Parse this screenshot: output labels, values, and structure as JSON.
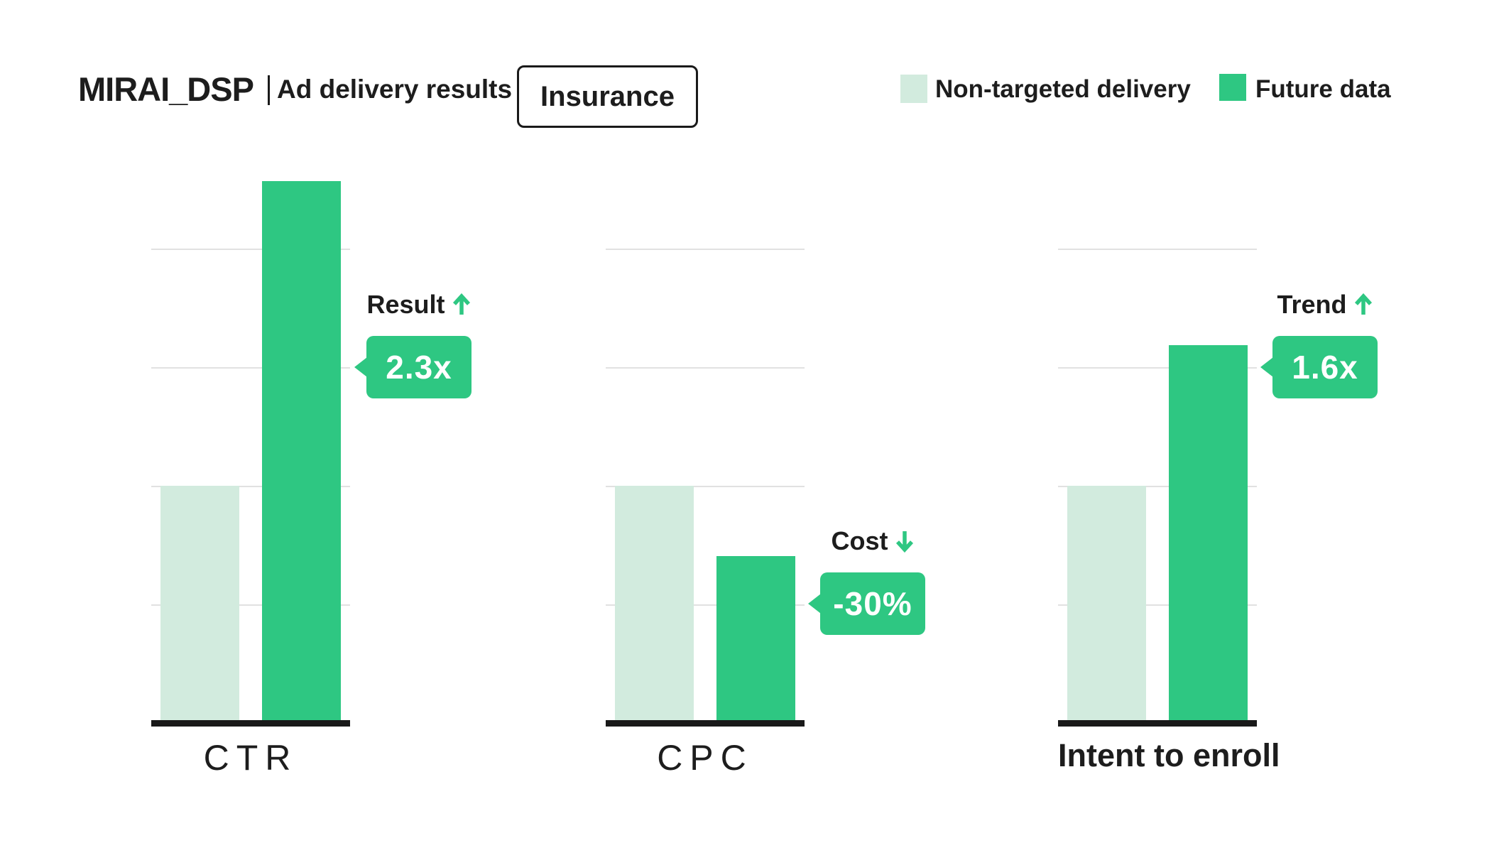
{
  "header": {
    "brand": "MIRAI_DSP",
    "subtitle": "Ad delivery results",
    "category_chip": "Insurance"
  },
  "legend": {
    "items": [
      {
        "label": "Non-targeted delivery",
        "color": "#d2ebde"
      },
      {
        "label": "Future data",
        "color": "#2ec782"
      }
    ]
  },
  "colors": {
    "accent_green": "#2ec782",
    "light_green": "#d2ebde",
    "text": "#1d1d1d",
    "gridline": "#e1e1e1",
    "axis_baseline": "#191919"
  },
  "charts": [
    {
      "label": "CTR",
      "callout": {
        "title": "Result",
        "direction": "up",
        "value": "2.3x"
      }
    },
    {
      "label": "CPC",
      "callout": {
        "title": "Cost",
        "direction": "down",
        "value": "-30%"
      }
    },
    {
      "label": "Intent to enroll",
      "callout": {
        "title": "Trend",
        "direction": "up",
        "value": "1.6x"
      }
    }
  ],
  "chart_data": {
    "type": "bar",
    "title": "MIRAI_DSP | Ad delivery results",
    "category_filter": "Insurance",
    "categories": [
      "CTR",
      "CPC",
      "Intent to enroll"
    ],
    "series": [
      {
        "name": "Non-targeted delivery",
        "color": "#d2ebde",
        "values": [
          1.0,
          1.0,
          1.0
        ]
      },
      {
        "name": "Future data",
        "color": "#2ec782",
        "values": [
          2.3,
          0.7,
          1.6
        ]
      }
    ],
    "annotations": [
      {
        "category": "CTR",
        "label": "Result",
        "trend": "up",
        "value": "2.3x"
      },
      {
        "category": "CPC",
        "label": "Cost",
        "trend": "down",
        "value": "-30%"
      },
      {
        "category": "Intent to enroll",
        "label": "Trend",
        "trend": "up",
        "value": "1.6x"
      }
    ],
    "ylabel": "",
    "xlabel": "",
    "ylim": [
      0,
      2.45
    ],
    "grid": true,
    "value_axis_labels": false,
    "legend_position": "top-right"
  }
}
